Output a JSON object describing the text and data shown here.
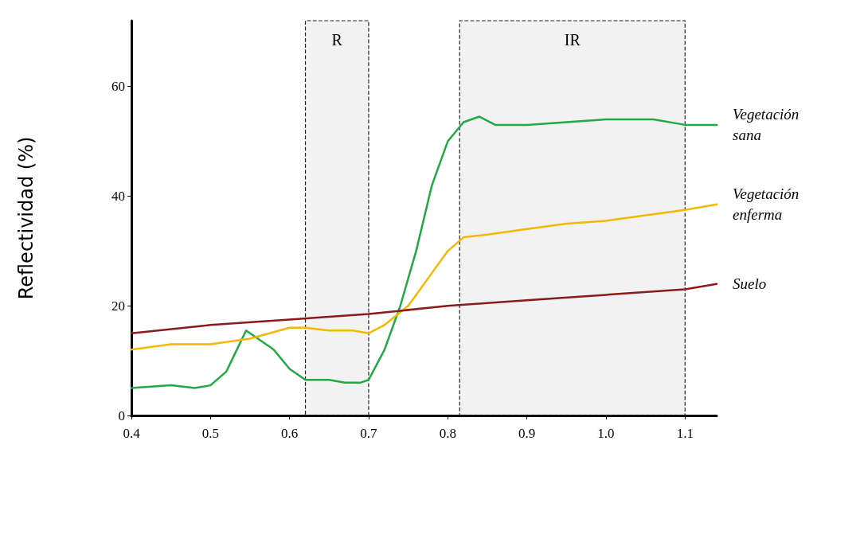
{
  "chart_data": {
    "type": "line",
    "ylabel": "Reflectividad (%)",
    "xlim": [
      0.4,
      1.14
    ],
    "xticks": [
      0.4,
      0.5,
      0.6,
      0.7,
      0.8,
      0.9,
      {
        "value": 1,
        "label": "1.0"
      },
      1.1
    ],
    "ylim": [
      0,
      72
    ],
    "yticks": [
      0,
      20,
      40,
      60
    ],
    "grid": false,
    "legend": false,
    "marker": "none",
    "line_style": "solid",
    "bands": [
      {
        "axis": "x",
        "from": 0.62,
        "to": 0.7,
        "label": "R"
      },
      {
        "axis": "x",
        "from": 0.815,
        "to": 1.1,
        "label": "IR"
      }
    ],
    "series": [
      {
        "name": "Vegetación sana",
        "color": "#22a844",
        "x": [
          0.4,
          0.45,
          0.48,
          0.5,
          0.52,
          0.545,
          0.58,
          0.6,
          0.62,
          0.65,
          0.67,
          0.69,
          0.7,
          0.72,
          0.74,
          0.76,
          0.78,
          0.8,
          0.82,
          0.84,
          0.86,
          0.9,
          0.95,
          1.0,
          1.06,
          1.1,
          1.14
        ],
        "values": [
          5,
          5.5,
          5,
          5.5,
          8,
          15.5,
          12,
          8.5,
          6.5,
          6.5,
          6,
          6,
          6.5,
          12,
          20,
          30,
          42,
          50,
          53.5,
          54.5,
          53,
          53,
          53.5,
          54,
          54,
          53,
          53
        ]
      },
      {
        "name": "Vegetación enferma",
        "color": "#f5b800",
        "x": [
          0.4,
          0.45,
          0.5,
          0.55,
          0.6,
          0.62,
          0.65,
          0.68,
          0.7,
          0.72,
          0.75,
          0.78,
          0.8,
          0.82,
          0.85,
          0.9,
          0.95,
          1.0,
          1.05,
          1.1,
          1.14
        ],
        "values": [
          12,
          13,
          13,
          14,
          16,
          16,
          15.5,
          15.5,
          15,
          16.5,
          20,
          26,
          30,
          32.5,
          33,
          34,
          35,
          35.5,
          36.5,
          37.5,
          38.5
        ]
      },
      {
        "name": "Suelo",
        "color": "#8b1a1a",
        "x": [
          0.4,
          0.5,
          0.6,
          0.7,
          0.8,
          0.9,
          1.0,
          1.1,
          1.14
        ],
        "values": [
          15,
          16.5,
          17.5,
          18.5,
          20,
          21,
          22,
          23,
          24
        ]
      }
    ]
  }
}
